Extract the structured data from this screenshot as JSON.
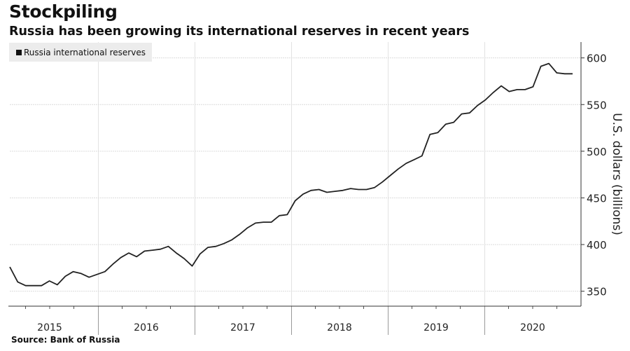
{
  "header": {
    "title": "Stockpiling",
    "subtitle": "Russia has been growing its international reserves in recent years"
  },
  "footer": {
    "source": "Source:  Bank of Russia"
  },
  "chart_data": {
    "type": "line",
    "title": "Stockpiling",
    "subtitle": "Russia has been growing its international reserves in recent years",
    "xlabel": "",
    "ylabel": "U.S. dollars (billions)",
    "frequency": "monthly",
    "start": "2015-01",
    "x_tick_labels": [
      "2015",
      "2016",
      "2017",
      "2018",
      "2019",
      "2020"
    ],
    "y_ticks": [
      350,
      400,
      450,
      500,
      550,
      600
    ],
    "ylim": [
      334,
      617
    ],
    "grid": true,
    "legend_position": "top-left",
    "line_color": "#222222",
    "series": [
      {
        "name": "Russia international reserves",
        "values": [
          376,
          360,
          356,
          356,
          356,
          361,
          357,
          366,
          371,
          369,
          365,
          368,
          371,
          379,
          386,
          391,
          387,
          393,
          394,
          395,
          398,
          391,
          385,
          377,
          390,
          397,
          398,
          401,
          405,
          411,
          418,
          423,
          424,
          424,
          431,
          432,
          447,
          454,
          458,
          459,
          456,
          457,
          458,
          460,
          459,
          459,
          461,
          467,
          474,
          481,
          487,
          491,
          495,
          518,
          520,
          529,
          531,
          540,
          541,
          549,
          555,
          563,
          570,
          564,
          566,
          566,
          569,
          591,
          594,
          584,
          583,
          583
        ]
      }
    ]
  }
}
